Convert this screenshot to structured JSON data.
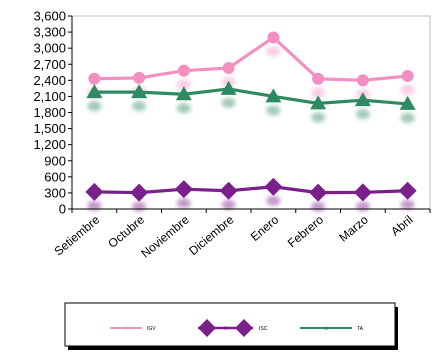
{
  "chart_data": {
    "type": "line",
    "categories": [
      "Setiembre",
      "Octubre",
      "Noviembre",
      "Diciembre",
      "Enero",
      "Febrero",
      "Marzo",
      "Abril"
    ],
    "y_ticks": [
      "0",
      "300",
      "600",
      "900",
      "1,200",
      "1,500",
      "1,800",
      "2,100",
      "2,400",
      "2,700",
      "3,000",
      "3,300",
      "3,600"
    ],
    "ylim": [
      0,
      3600
    ],
    "grid": false,
    "legend_position": "bottom",
    "series": [
      {
        "name": "IGV",
        "color": "#f48fc1",
        "marker": "circle",
        "values": [
          2430,
          2445,
          2580,
          2630,
          3200,
          2430,
          2400,
          2480
        ]
      },
      {
        "name": "ISC",
        "color": "#7b1f8c",
        "marker": "diamond",
        "values": [
          320,
          305,
          370,
          340,
          415,
          305,
          310,
          340
        ]
      },
      {
        "name": "TA",
        "color": "#2e8b61",
        "marker": "triangle",
        "values": [
          2180,
          2180,
          2140,
          2240,
          2100,
          1970,
          2030,
          1960
        ]
      }
    ]
  }
}
